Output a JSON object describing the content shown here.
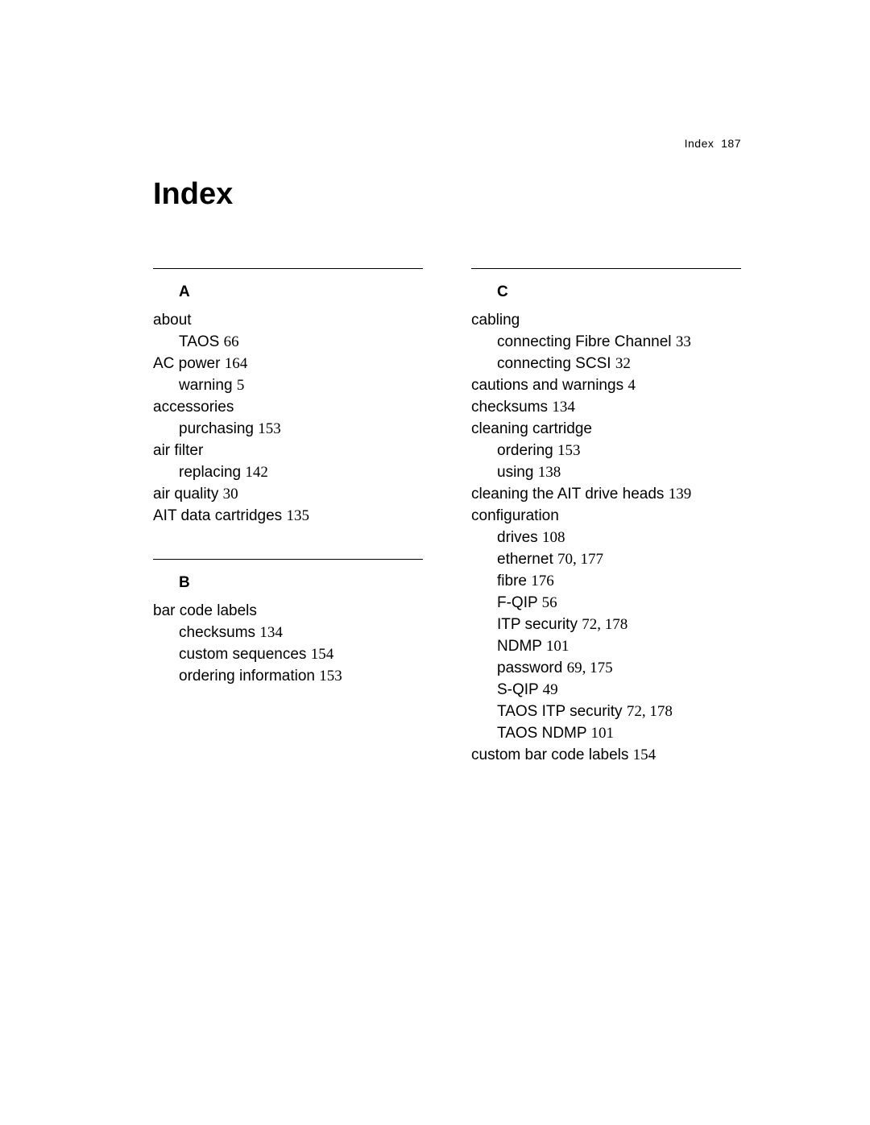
{
  "running_head": {
    "label": "Index",
    "page": "187"
  },
  "title": "Index",
  "left_sections": [
    {
      "letter": "A",
      "entries": [
        {
          "text": "about",
          "page": "",
          "indent": 0
        },
        {
          "text": "TAOS",
          "page": "66",
          "indent": 1
        },
        {
          "text": "AC power",
          "page": "164",
          "indent": 0
        },
        {
          "text": "warning",
          "page": "5",
          "indent": 1
        },
        {
          "text": "accessories",
          "page": "",
          "indent": 0
        },
        {
          "text": "purchasing",
          "page": "153",
          "indent": 1
        },
        {
          "text": "air filter",
          "page": "",
          "indent": 0
        },
        {
          "text": "replacing",
          "page": "142",
          "indent": 1
        },
        {
          "text": "air quality",
          "page": "30",
          "indent": 0
        },
        {
          "text": "AIT data cartridges",
          "page": "135",
          "indent": 0
        }
      ]
    },
    {
      "letter": "B",
      "entries": [
        {
          "text": "bar code labels",
          "page": "",
          "indent": 0
        },
        {
          "text": "checksums",
          "page": "134",
          "indent": 1
        },
        {
          "text": "custom sequences",
          "page": "154",
          "indent": 1
        },
        {
          "text": "ordering information",
          "page": "153",
          "indent": 1
        }
      ]
    }
  ],
  "right_sections": [
    {
      "letter": "C",
      "entries": [
        {
          "text": "cabling",
          "page": "",
          "indent": 0
        },
        {
          "text": "connecting Fibre Channel",
          "page": "33",
          "indent": 1
        },
        {
          "text": "connecting SCSI",
          "page": "32",
          "indent": 1
        },
        {
          "text": "cautions and warnings",
          "page": "4",
          "indent": 0
        },
        {
          "text": "checksums",
          "page": "134",
          "indent": 0
        },
        {
          "text": "cleaning cartridge",
          "page": "",
          "indent": 0
        },
        {
          "text": "ordering",
          "page": "153",
          "indent": 1
        },
        {
          "text": "using",
          "page": "138",
          "indent": 1
        },
        {
          "text": "cleaning the AIT drive heads",
          "page": "139",
          "indent": 0
        },
        {
          "text": "configuration",
          "page": "",
          "indent": 0
        },
        {
          "text": "drives",
          "page": "108",
          "indent": 1
        },
        {
          "text": "ethernet",
          "page": "70, 177",
          "indent": 1
        },
        {
          "text": "fibre",
          "page": "176",
          "indent": 1
        },
        {
          "text": "F-QIP",
          "page": "56",
          "indent": 1
        },
        {
          "text": "ITP security",
          "page": "72, 178",
          "indent": 1
        },
        {
          "text": "NDMP",
          "page": "101",
          "indent": 1
        },
        {
          "text": "password",
          "page": "69, 175",
          "indent": 1
        },
        {
          "text": "S-QIP",
          "page": "49",
          "indent": 1
        },
        {
          "text": "TAOS ITP security",
          "page": "72, 178",
          "indent": 1
        },
        {
          "text": "TAOS NDMP",
          "page": "101",
          "indent": 1
        },
        {
          "text": "custom bar code labels",
          "page": "154",
          "indent": 0
        }
      ]
    }
  ]
}
